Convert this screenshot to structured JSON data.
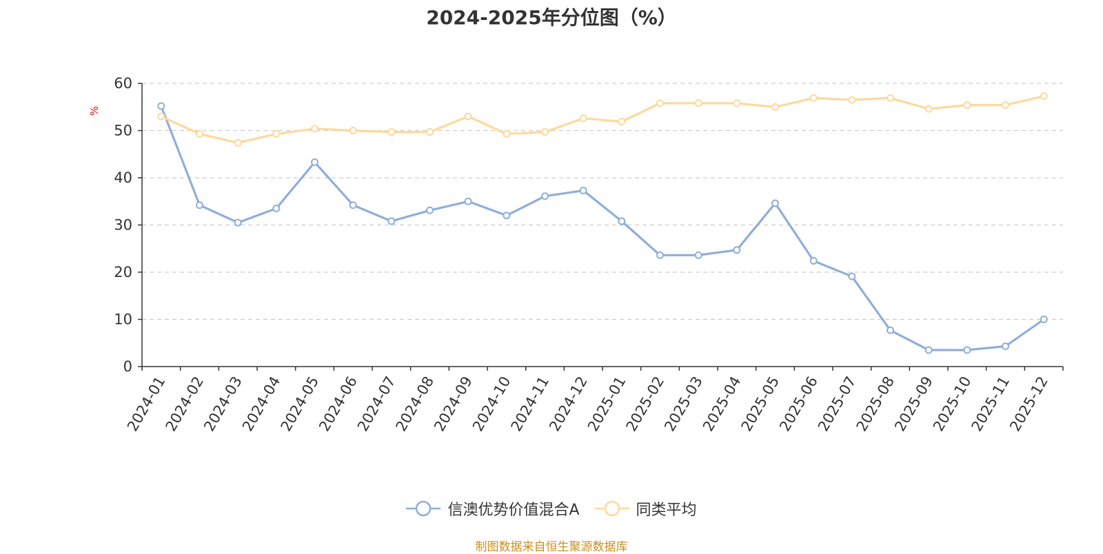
{
  "chart_data": {
    "type": "line",
    "title": "2024-2025年分位图（%）",
    "ylabel": "%",
    "xlabel": "",
    "ylim": [
      0,
      60
    ],
    "yticks": [
      0,
      10,
      20,
      30,
      40,
      50,
      60
    ],
    "grid": true,
    "legend_position": "bottom",
    "categories": [
      "2024-01",
      "2024-02",
      "2024-03",
      "2024-04",
      "2024-05",
      "2024-06",
      "2024-07",
      "2024-08",
      "2024-09",
      "2024-10",
      "2024-11",
      "2024-12",
      "2025-01",
      "2025-02",
      "2025-03",
      "2025-04",
      "2025-05",
      "2025-06",
      "2025-07",
      "2025-08",
      "2025-09",
      "2025-10",
      "2025-11",
      "2025-12"
    ],
    "series": [
      {
        "name": "信澳优势价值混合A",
        "color": "#8eaed9",
        "values": [
          55.2,
          34.2,
          30.5,
          33.5,
          43.3,
          34.2,
          30.8,
          33.1,
          35.0,
          32.0,
          36.1,
          37.3,
          30.8,
          23.6,
          23.6,
          24.7,
          34.6,
          22.4,
          19.1,
          7.7,
          3.5,
          3.5,
          4.3,
          10.0
        ]
      },
      {
        "name": "同类平均",
        "color": "#fdd99b",
        "values": [
          53.0,
          49.3,
          47.4,
          49.3,
          50.4,
          50.0,
          49.7,
          49.7,
          53.0,
          49.3,
          49.7,
          52.6,
          51.9,
          55.8,
          55.8,
          55.8,
          55.0,
          56.9,
          56.5,
          56.9,
          54.6,
          55.4,
          55.4,
          57.3
        ]
      }
    ]
  },
  "source_text": "制图数据来自恒生聚源数据库"
}
